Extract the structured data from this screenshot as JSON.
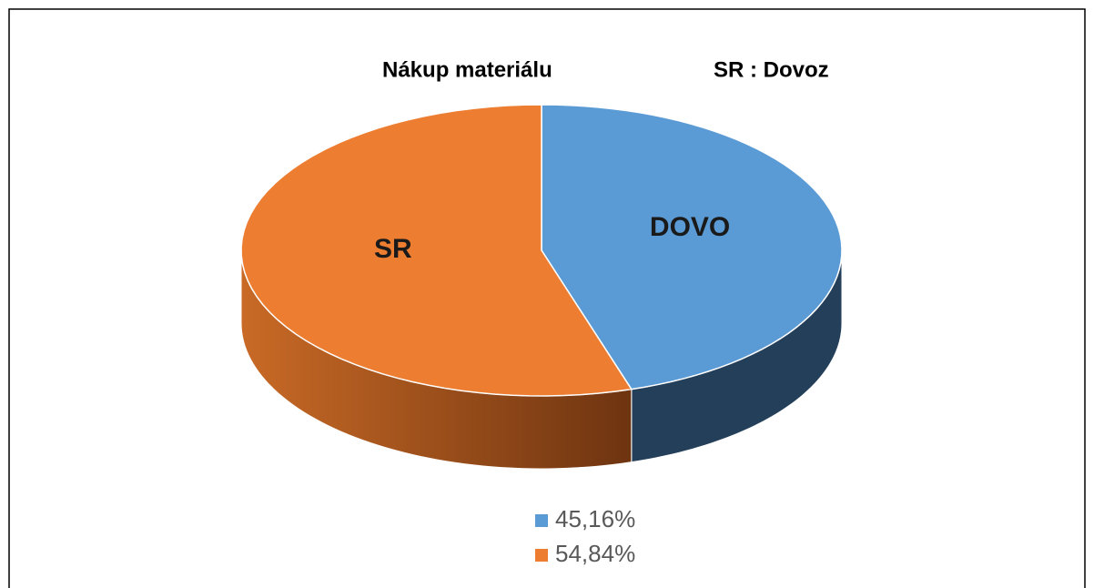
{
  "chart_data": {
    "type": "pie",
    "title": "Nákup materiálu",
    "subtitle": "SR : Dovoz",
    "categories": [
      "DOVO",
      "SR"
    ],
    "values": [
      45.16,
      54.84
    ],
    "value_labels": [
      "45,16%",
      "54,84%"
    ],
    "colors": [
      "#5b9bd5",
      "#ed7d31"
    ],
    "side_colors": [
      "#243f5a",
      "#b85e20"
    ],
    "legend": "bottom",
    "three_d": true
  }
}
